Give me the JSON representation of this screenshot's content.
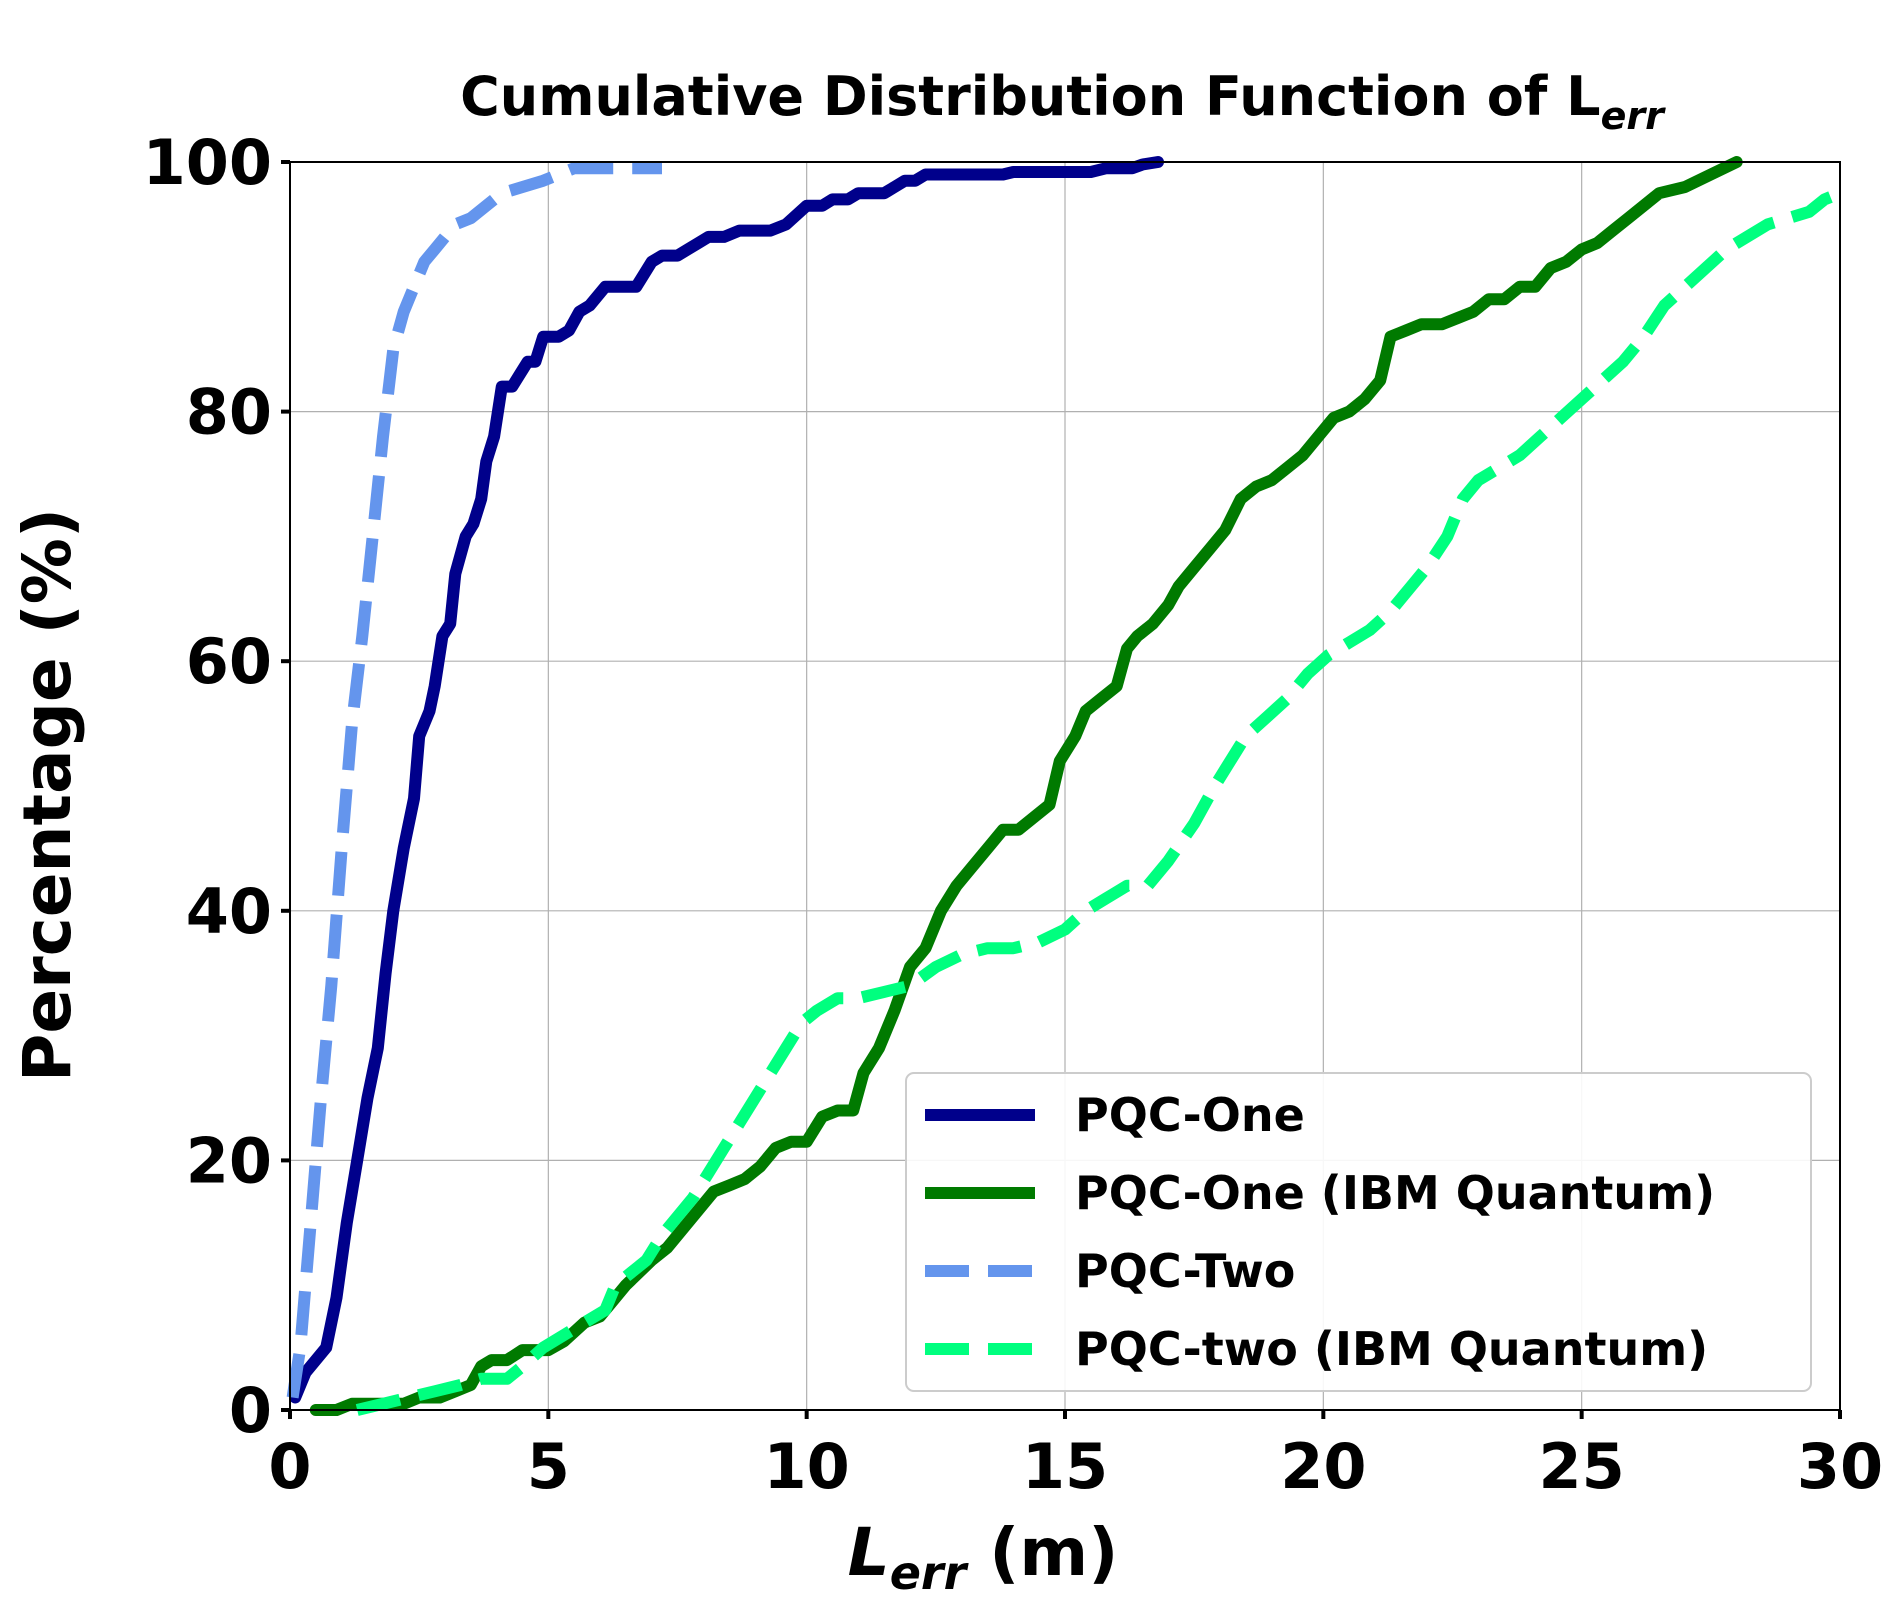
{
  "chart_data": {
    "type": "line",
    "title": "Cumulative Distribution Function of L",
    "title_subscript": "err",
    "xlabel": "L",
    "xlabel_subscript": "err",
    "xlabel_unit": " (m)",
    "ylabel": "Percentage (%)",
    "xlim": [
      0,
      30
    ],
    "ylim": [
      0,
      100
    ],
    "xticks": [
      0,
      5,
      10,
      15,
      20,
      25,
      30
    ],
    "yticks": [
      0,
      20,
      40,
      60,
      80,
      100
    ],
    "grid": true,
    "legend_position": "lower-right",
    "series": [
      {
        "name": "PQC-One",
        "color": "#00008b",
        "dash": "solid",
        "points": [
          [
            0.1,
            1
          ],
          [
            0.3,
            3
          ],
          [
            0.7,
            5
          ],
          [
            0.9,
            9
          ],
          [
            1.1,
            15
          ],
          [
            1.3,
            20
          ],
          [
            1.5,
            25
          ],
          [
            1.7,
            29
          ],
          [
            1.85,
            35
          ],
          [
            2.0,
            40
          ],
          [
            2.2,
            45
          ],
          [
            2.4,
            49
          ],
          [
            2.5,
            54
          ],
          [
            2.7,
            56
          ],
          [
            2.8,
            58
          ],
          [
            2.95,
            62
          ],
          [
            3.1,
            63
          ],
          [
            3.2,
            67
          ],
          [
            3.4,
            70
          ],
          [
            3.55,
            71
          ],
          [
            3.7,
            73
          ],
          [
            3.8,
            76
          ],
          [
            3.95,
            78
          ],
          [
            4.1,
            82
          ],
          [
            4.3,
            82
          ],
          [
            4.45,
            83
          ],
          [
            4.6,
            84
          ],
          [
            4.75,
            84
          ],
          [
            4.9,
            86
          ],
          [
            5.2,
            86
          ],
          [
            5.4,
            86.5
          ],
          [
            5.6,
            88
          ],
          [
            5.8,
            88.5
          ],
          [
            6.1,
            90
          ],
          [
            6.7,
            90
          ],
          [
            7.0,
            92
          ],
          [
            7.2,
            92.5
          ],
          [
            7.5,
            92.5
          ],
          [
            7.7,
            93
          ],
          [
            7.9,
            93.5
          ],
          [
            8.1,
            94
          ],
          [
            8.4,
            94
          ],
          [
            8.7,
            94.5
          ],
          [
            9.0,
            94.5
          ],
          [
            9.3,
            94.5
          ],
          [
            9.6,
            95
          ],
          [
            10.0,
            96.5
          ],
          [
            10.3,
            96.5
          ],
          [
            10.5,
            97
          ],
          [
            10.8,
            97
          ],
          [
            11.0,
            97.5
          ],
          [
            11.5,
            97.5
          ],
          [
            11.7,
            98
          ],
          [
            11.9,
            98.5
          ],
          [
            12.1,
            98.5
          ],
          [
            12.3,
            99
          ],
          [
            13.8,
            99
          ],
          [
            14.0,
            99.2
          ],
          [
            15.5,
            99.2
          ],
          [
            15.8,
            99.5
          ],
          [
            16.3,
            99.5
          ],
          [
            16.5,
            99.8
          ],
          [
            16.8,
            100
          ]
        ]
      },
      {
        "name": "PQC-One (IBM Quantum)",
        "color": "#007a00",
        "dash": "solid",
        "points": [
          [
            0.5,
            0
          ],
          [
            0.9,
            0
          ],
          [
            1.2,
            0.5
          ],
          [
            2.2,
            0.5
          ],
          [
            2.5,
            1
          ],
          [
            2.9,
            1
          ],
          [
            3.2,
            1.5
          ],
          [
            3.5,
            2
          ],
          [
            3.7,
            3.5
          ],
          [
            3.9,
            4
          ],
          [
            4.2,
            4
          ],
          [
            4.5,
            4.8
          ],
          [
            5.0,
            4.8
          ],
          [
            5.3,
            5.5
          ],
          [
            5.7,
            7
          ],
          [
            6.0,
            7.5
          ],
          [
            6.5,
            10
          ],
          [
            7.0,
            12
          ],
          [
            7.3,
            13
          ],
          [
            7.6,
            14.5
          ],
          [
            7.9,
            16
          ],
          [
            8.2,
            17.5
          ],
          [
            8.5,
            18
          ],
          [
            8.8,
            18.5
          ],
          [
            9.1,
            19.5
          ],
          [
            9.4,
            21
          ],
          [
            9.7,
            21.5
          ],
          [
            10.0,
            21.5
          ],
          [
            10.3,
            23.5
          ],
          [
            10.6,
            24
          ],
          [
            10.9,
            24
          ],
          [
            11.1,
            27
          ],
          [
            11.4,
            29
          ],
          [
            11.7,
            32
          ],
          [
            12.0,
            35.5
          ],
          [
            12.3,
            37
          ],
          [
            12.6,
            40
          ],
          [
            12.9,
            42
          ],
          [
            13.2,
            43.5
          ],
          [
            13.5,
            45
          ],
          [
            13.8,
            46.5
          ],
          [
            14.1,
            46.5
          ],
          [
            14.4,
            47.5
          ],
          [
            14.7,
            48.5
          ],
          [
            14.9,
            52
          ],
          [
            15.2,
            54
          ],
          [
            15.4,
            56
          ],
          [
            15.7,
            57
          ],
          [
            16.0,
            58
          ],
          [
            16.2,
            61
          ],
          [
            16.4,
            62
          ],
          [
            16.7,
            63
          ],
          [
            17.0,
            64.5
          ],
          [
            17.2,
            66
          ],
          [
            17.5,
            67.5
          ],
          [
            17.8,
            69
          ],
          [
            18.1,
            70.5
          ],
          [
            18.4,
            73
          ],
          [
            18.7,
            74
          ],
          [
            19.0,
            74.5
          ],
          [
            19.3,
            75.5
          ],
          [
            19.6,
            76.5
          ],
          [
            19.9,
            78
          ],
          [
            20.2,
            79.5
          ],
          [
            20.5,
            80
          ],
          [
            20.8,
            81
          ],
          [
            21.1,
            82.5
          ],
          [
            21.3,
            86
          ],
          [
            21.6,
            86.5
          ],
          [
            21.9,
            87
          ],
          [
            22.3,
            87
          ],
          [
            22.6,
            87.5
          ],
          [
            22.9,
            88
          ],
          [
            23.2,
            89
          ],
          [
            23.5,
            89
          ],
          [
            23.8,
            90
          ],
          [
            24.1,
            90
          ],
          [
            24.4,
            91.5
          ],
          [
            24.7,
            92
          ],
          [
            25.0,
            93
          ],
          [
            25.3,
            93.5
          ],
          [
            25.6,
            94.5
          ],
          [
            25.9,
            95.5
          ],
          [
            26.2,
            96.5
          ],
          [
            26.5,
            97.5
          ],
          [
            27.0,
            98
          ],
          [
            27.5,
            99
          ],
          [
            28.0,
            100
          ]
        ]
      },
      {
        "name": "PQC-Two",
        "color": "#6495ed",
        "dash": "dashed",
        "points": [
          [
            0.05,
            1
          ],
          [
            0.2,
            5
          ],
          [
            0.4,
            15
          ],
          [
            0.6,
            25
          ],
          [
            0.8,
            34
          ],
          [
            1.0,
            45
          ],
          [
            1.2,
            55
          ],
          [
            1.4,
            62
          ],
          [
            1.6,
            70
          ],
          [
            1.8,
            78
          ],
          [
            2.0,
            85
          ],
          [
            2.2,
            88
          ],
          [
            2.4,
            90
          ],
          [
            2.6,
            92
          ],
          [
            2.8,
            93
          ],
          [
            3.0,
            94
          ],
          [
            3.2,
            95
          ],
          [
            3.5,
            95.5
          ],
          [
            3.8,
            96.5
          ],
          [
            4.1,
            97.5
          ],
          [
            4.5,
            98
          ],
          [
            4.9,
            98.5
          ],
          [
            5.2,
            99
          ],
          [
            5.5,
            99.5
          ],
          [
            6.0,
            99.5
          ],
          [
            7.2,
            99.5
          ]
        ]
      },
      {
        "name": "PQC-two (IBM Quantum)",
        "color": "#00ff7f",
        "dash": "dashed",
        "points": [
          [
            1.3,
            0
          ],
          [
            1.8,
            0.5
          ],
          [
            2.3,
            1
          ],
          [
            2.8,
            1.5
          ],
          [
            3.3,
            2
          ],
          [
            3.7,
            2.5
          ],
          [
            4.2,
            2.5
          ],
          [
            4.5,
            3.5
          ],
          [
            4.9,
            5
          ],
          [
            5.3,
            6
          ],
          [
            5.7,
            7
          ],
          [
            6.1,
            8
          ],
          [
            6.3,
            10
          ],
          [
            6.6,
            11
          ],
          [
            6.9,
            12
          ],
          [
            7.2,
            14
          ],
          [
            7.5,
            15.5
          ],
          [
            7.8,
            17
          ],
          [
            8.1,
            19
          ],
          [
            8.4,
            21
          ],
          [
            8.7,
            23
          ],
          [
            9.0,
            25
          ],
          [
            9.3,
            27
          ],
          [
            9.6,
            29
          ],
          [
            9.9,
            31
          ],
          [
            10.2,
            32
          ],
          [
            10.6,
            33
          ],
          [
            11.0,
            33
          ],
          [
            11.5,
            33.5
          ],
          [
            12.0,
            34
          ],
          [
            12.5,
            35.5
          ],
          [
            13.0,
            36.5
          ],
          [
            13.5,
            37
          ],
          [
            14.0,
            37
          ],
          [
            14.5,
            37.5
          ],
          [
            15.0,
            38.5
          ],
          [
            15.4,
            40
          ],
          [
            15.8,
            41
          ],
          [
            16.2,
            42
          ],
          [
            16.6,
            42
          ],
          [
            17.0,
            44
          ],
          [
            17.5,
            47
          ],
          [
            17.9,
            50
          ],
          [
            18.2,
            52
          ],
          [
            18.5,
            54
          ],
          [
            18.9,
            55.5
          ],
          [
            19.3,
            57
          ],
          [
            19.7,
            59
          ],
          [
            20.1,
            60.5
          ],
          [
            20.5,
            61.5
          ],
          [
            20.9,
            62.5
          ],
          [
            21.3,
            64
          ],
          [
            21.7,
            66
          ],
          [
            22.0,
            67.5
          ],
          [
            22.4,
            70
          ],
          [
            22.7,
            73
          ],
          [
            23.0,
            74.5
          ],
          [
            23.4,
            75.5
          ],
          [
            23.8,
            76.5
          ],
          [
            24.2,
            78
          ],
          [
            24.6,
            79.5
          ],
          [
            25.0,
            81
          ],
          [
            25.4,
            82.5
          ],
          [
            25.8,
            84
          ],
          [
            26.2,
            86
          ],
          [
            26.6,
            88.5
          ],
          [
            27.0,
            90
          ],
          [
            27.4,
            91.5
          ],
          [
            27.8,
            93
          ],
          [
            28.2,
            94
          ],
          [
            28.6,
            95
          ],
          [
            29.0,
            95.5
          ],
          [
            29.4,
            96
          ],
          [
            29.7,
            97
          ],
          [
            30.0,
            97.5
          ]
        ]
      }
    ]
  }
}
